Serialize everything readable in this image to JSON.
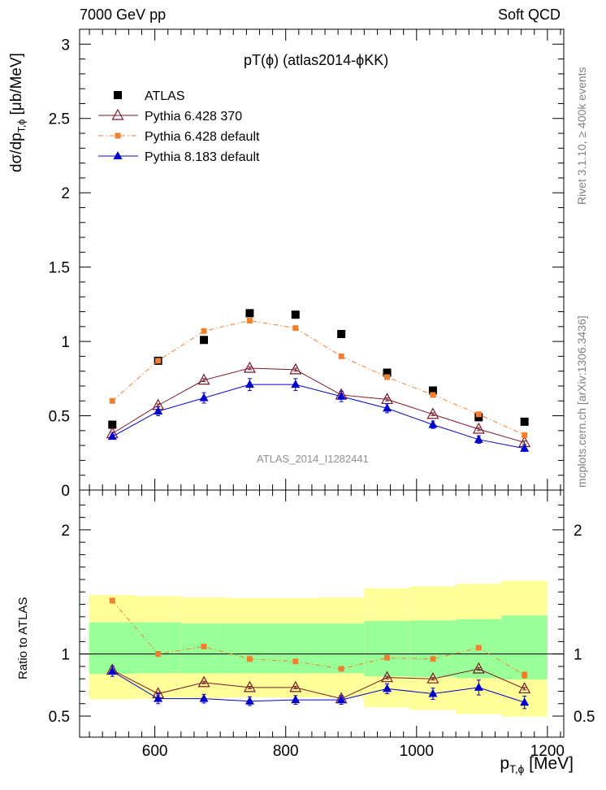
{
  "header": {
    "left": "7000 GeV pp",
    "right": "Soft QCD"
  },
  "side_labels": {
    "rivet": "Rivet 3.1.10, ≥ 400k events",
    "mcplots": "mcplots.cern.ch [arXiv:1306.3436]"
  },
  "chart_data": [
    {
      "type": "scatter",
      "title": "pT(ϕ) (atlas2014-ϕKK)",
      "watermark": "ATLAS_2014_I1282441",
      "ylabel": "dσ/dp",
      "ylabel_sub": "T,ϕ",
      "ylabel_unit": "[μb/MeV]",
      "xlabel": "p",
      "xlabel_sub": "T,ϕ",
      "xlabel_unit": "[MeV]",
      "xlim": [
        485,
        1225
      ],
      "ylim": [
        0,
        3.1
      ],
      "yticks": [
        0,
        0.5,
        1,
        1.5,
        2,
        2.5,
        3
      ],
      "ytick_labels": [
        "0",
        "0.5",
        "1",
        "1.5",
        "2",
        "2.5",
        "3"
      ],
      "xticks": [
        600,
        800,
        1000,
        1200
      ],
      "xtick_labels": [
        "600",
        "800",
        "1000",
        "1200"
      ],
      "legend_position": "top-left",
      "x": [
        535,
        605,
        675,
        745,
        815,
        885,
        955,
        1025,
        1095,
        1165
      ],
      "series": [
        {
          "name": "ATLAS",
          "marker": "square",
          "color": "#000000",
          "values": [
            0.44,
            0.87,
            1.01,
            1.19,
            1.18,
            1.05,
            0.79,
            0.67,
            0.49,
            0.46
          ]
        },
        {
          "name": "Pythia 6.428 370",
          "marker": "open-triangle",
          "color": "#7a1a28",
          "line": "solid",
          "values": [
            0.38,
            0.57,
            0.74,
            0.82,
            0.81,
            0.64,
            0.61,
            0.51,
            0.41,
            0.32
          ],
          "errors": [
            0.01,
            0.01,
            0.01,
            0.01,
            0.01,
            0.01,
            0.01,
            0.01,
            0.01,
            0.01
          ]
        },
        {
          "name": "Pythia 6.428 default",
          "marker": "square",
          "color": "#f08030",
          "line": "dashdot",
          "values": [
            0.6,
            0.87,
            1.07,
            1.14,
            1.09,
            0.9,
            0.76,
            0.64,
            0.51,
            0.37
          ],
          "errors": [
            0.01,
            0.01,
            0.01,
            0.01,
            0.01,
            0.01,
            0.01,
            0.01,
            0.01,
            0.01
          ]
        },
        {
          "name": "Pythia 8.183 default",
          "marker": "triangle",
          "color": "#0000cc",
          "line": "solid",
          "values": [
            0.36,
            0.53,
            0.62,
            0.71,
            0.71,
            0.63,
            0.55,
            0.44,
            0.34,
            0.28
          ],
          "errors": [
            0.015,
            0.03,
            0.035,
            0.04,
            0.04,
            0.035,
            0.03,
            0.025,
            0.025,
            0.02
          ]
        }
      ]
    },
    {
      "type": "scatter",
      "ylabel": "Ratio to ATLAS",
      "xlim": [
        485,
        1225
      ],
      "ylim": [
        0.33,
        2.32
      ],
      "yticks": [
        0.5,
        1,
        2
      ],
      "ytick_labels": [
        "0.5",
        "1",
        "2"
      ],
      "reference_line": 1,
      "bands": {
        "x_edges": [
          500,
          570,
          640,
          710,
          780,
          850,
          920,
          990,
          1060,
          1130,
          1200
        ],
        "inner_color": "#99ff99",
        "outer_color": "#ffff99",
        "inner_low": [
          0.84,
          0.845,
          0.845,
          0.845,
          0.845,
          0.845,
          0.82,
          0.815,
          0.805,
          0.795
        ],
        "inner_high": [
          1.255,
          1.255,
          1.245,
          1.245,
          1.245,
          1.245,
          1.265,
          1.27,
          1.28,
          1.31
        ],
        "outer_low": [
          0.635,
          0.64,
          0.645,
          0.65,
          0.65,
          0.65,
          0.57,
          0.55,
          0.515,
          0.495
        ],
        "outer_high": [
          1.475,
          1.465,
          1.455,
          1.45,
          1.45,
          1.455,
          1.53,
          1.545,
          1.565,
          1.59
        ]
      },
      "x": [
        535,
        605,
        675,
        745,
        815,
        885,
        955,
        1025,
        1095,
        1165
      ],
      "series": [
        {
          "name": "Pythia 6.428 370",
          "marker": "open-triangle",
          "color": "#7a1a28",
          "line": "solid",
          "values": [
            0.87,
            0.68,
            0.77,
            0.73,
            0.73,
            0.64,
            0.81,
            0.8,
            0.88,
            0.72
          ],
          "errors": [
            0.01,
            0.01,
            0.01,
            0.01,
            0.01,
            0.01,
            0.01,
            0.01,
            0.01,
            0.01
          ]
        },
        {
          "name": "Pythia 6.428 default",
          "marker": "square",
          "color": "#f08030",
          "line": "dashdot",
          "values": [
            1.43,
            1.0,
            1.06,
            0.96,
            0.94,
            0.88,
            0.97,
            0.96,
            1.05,
            0.83
          ],
          "errors": [
            0.02,
            0.02,
            0.01,
            0.01,
            0.01,
            0.01,
            0.015,
            0.015,
            0.02,
            0.025
          ]
        },
        {
          "name": "Pythia 8.183 default",
          "marker": "triangle",
          "color": "#0000cc",
          "line": "solid",
          "values": [
            0.86,
            0.64,
            0.64,
            0.62,
            0.63,
            0.63,
            0.72,
            0.68,
            0.73,
            0.61
          ],
          "errors": [
            0.04,
            0.04,
            0.035,
            0.035,
            0.035,
            0.035,
            0.04,
            0.045,
            0.06,
            0.05
          ]
        }
      ]
    }
  ]
}
